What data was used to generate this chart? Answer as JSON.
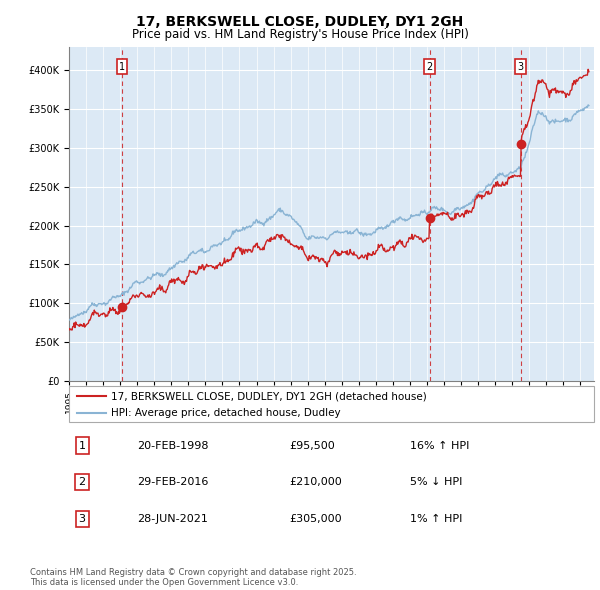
{
  "title": "17, BERKSWELL CLOSE, DUDLEY, DY1 2GH",
  "subtitle": "Price paid vs. HM Land Registry's House Price Index (HPI)",
  "ylim": [
    0,
    420000
  ],
  "yticks": [
    0,
    50000,
    100000,
    150000,
    200000,
    250000,
    300000,
    350000,
    400000
  ],
  "legend_line1": "17, BERKSWELL CLOSE, DUDLEY, DY1 2GH (detached house)",
  "legend_line2": "HPI: Average price, detached house, Dudley",
  "transactions": [
    {
      "num": 1,
      "date": "20-FEB-1998",
      "price": 95500,
      "hpi_rel": "16% ↑ HPI",
      "year": 1998.12
    },
    {
      "num": 2,
      "date": "29-FEB-2016",
      "price": 210000,
      "hpi_rel": "5% ↓ HPI",
      "year": 2016.16
    },
    {
      "num": 3,
      "date": "28-JUN-2021",
      "price": 305000,
      "hpi_rel": "1% ↑ HPI",
      "year": 2021.49
    }
  ],
  "footer": "Contains HM Land Registry data © Crown copyright and database right 2025.\nThis data is licensed under the Open Government Licence v3.0.",
  "hpi_color": "#8ab4d4",
  "price_color": "#cc2222",
  "chart_bg": "#dce9f5",
  "background_color": "#ffffff",
  "xlim": [
    1995,
    2025.5
  ],
  "table_data": [
    [
      "1",
      "20-FEB-1998",
      "£95,500",
      "16% ↑ HPI"
    ],
    [
      "2",
      "29-FEB-2016",
      "£210,000",
      "5% ↓ HPI"
    ],
    [
      "3",
      "28-JUN-2021",
      "£305,000",
      "1% ↑ HPI"
    ]
  ]
}
